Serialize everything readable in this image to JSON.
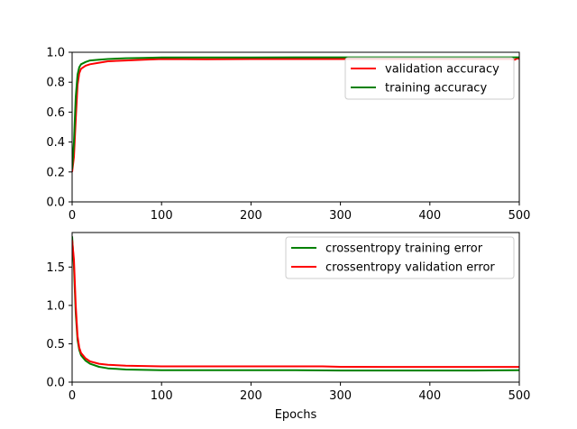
{
  "chart_data": [
    {
      "type": "line",
      "title": "",
      "xlabel": "",
      "ylabel": "",
      "xlim": [
        0,
        500
      ],
      "ylim": [
        0,
        1.0
      ],
      "x_ticks": [
        0,
        100,
        200,
        300,
        400,
        500
      ],
      "y_ticks": [
        0.0,
        0.2,
        0.4,
        0.6,
        0.8,
        1.0
      ],
      "x_tick_labels": [
        "0",
        "100",
        "200",
        "300",
        "400",
        "500"
      ],
      "y_tick_labels": [
        "0.0",
        "0.2",
        "0.4",
        "0.6",
        "0.8",
        "1.0"
      ],
      "grid": false,
      "legend_position": "top-right",
      "series": [
        {
          "name": "validation accuracy",
          "color": "#ff0000",
          "points": [
            [
              0,
              0.2
            ],
            [
              2,
              0.3
            ],
            [
              4,
              0.55
            ],
            [
              6,
              0.78
            ],
            [
              8,
              0.86
            ],
            [
              10,
              0.89
            ],
            [
              15,
              0.91
            ],
            [
              20,
              0.92
            ],
            [
              30,
              0.93
            ],
            [
              40,
              0.94
            ],
            [
              60,
              0.945
            ],
            [
              80,
              0.95
            ],
            [
              100,
              0.955
            ],
            [
              150,
              0.953
            ],
            [
              200,
              0.955
            ],
            [
              250,
              0.955
            ],
            [
              300,
              0.955
            ],
            [
              350,
              0.955
            ],
            [
              400,
              0.955
            ],
            [
              450,
              0.955
            ],
            [
              490,
              0.955
            ],
            [
              495,
              0.95
            ],
            [
              498,
              0.96
            ],
            [
              500,
              0.955
            ]
          ]
        },
        {
          "name": "training accuracy",
          "color": "#008000",
          "points": [
            [
              0,
              0.22
            ],
            [
              2,
              0.4
            ],
            [
              4,
              0.7
            ],
            [
              6,
              0.85
            ],
            [
              8,
              0.9
            ],
            [
              10,
              0.92
            ],
            [
              15,
              0.935
            ],
            [
              20,
              0.945
            ],
            [
              30,
              0.95
            ],
            [
              40,
              0.955
            ],
            [
              60,
              0.96
            ],
            [
              80,
              0.962
            ],
            [
              100,
              0.965
            ],
            [
              150,
              0.965
            ],
            [
              200,
              0.965
            ],
            [
              250,
              0.966
            ],
            [
              300,
              0.966
            ],
            [
              350,
              0.966
            ],
            [
              400,
              0.966
            ],
            [
              450,
              0.966
            ],
            [
              500,
              0.966
            ]
          ]
        }
      ]
    },
    {
      "type": "line",
      "title": "",
      "xlabel": "Epochs",
      "ylabel": "",
      "xlim": [
        0,
        500
      ],
      "ylim": [
        0,
        1.95
      ],
      "x_ticks": [
        0,
        100,
        200,
        300,
        400,
        500
      ],
      "y_ticks": [
        0.0,
        0.5,
        1.0,
        1.5
      ],
      "x_tick_labels": [
        "0",
        "100",
        "200",
        "300",
        "400",
        "500"
      ],
      "y_tick_labels": [
        "0.0",
        "0.5",
        "1.0",
        "1.5"
      ],
      "grid": false,
      "legend_position": "top-right",
      "series": [
        {
          "name": "crossentropy training error",
          "color": "#008000",
          "points": [
            [
              0,
              1.9
            ],
            [
              2,
              1.5
            ],
            [
              4,
              0.9
            ],
            [
              6,
              0.55
            ],
            [
              8,
              0.42
            ],
            [
              10,
              0.35
            ],
            [
              15,
              0.28
            ],
            [
              20,
              0.24
            ],
            [
              30,
              0.2
            ],
            [
              40,
              0.18
            ],
            [
              60,
              0.165
            ],
            [
              80,
              0.16
            ],
            [
              100,
              0.155
            ],
            [
              150,
              0.155
            ],
            [
              200,
              0.155
            ],
            [
              250,
              0.155
            ],
            [
              300,
              0.152
            ],
            [
              350,
              0.152
            ],
            [
              400,
              0.152
            ],
            [
              450,
              0.152
            ],
            [
              500,
              0.155
            ]
          ]
        },
        {
          "name": "crossentropy validation error",
          "color": "#ff0000",
          "points": [
            [
              0,
              1.85
            ],
            [
              2,
              1.6
            ],
            [
              4,
              1.0
            ],
            [
              6,
              0.6
            ],
            [
              8,
              0.45
            ],
            [
              10,
              0.38
            ],
            [
              15,
              0.31
            ],
            [
              20,
              0.27
            ],
            [
              30,
              0.24
            ],
            [
              40,
              0.225
            ],
            [
              60,
              0.215
            ],
            [
              80,
              0.21
            ],
            [
              100,
              0.205
            ],
            [
              150,
              0.205
            ],
            [
              200,
              0.205
            ],
            [
              250,
              0.205
            ],
            [
              280,
              0.205
            ],
            [
              300,
              0.2
            ],
            [
              350,
              0.198
            ],
            [
              400,
              0.198
            ],
            [
              450,
              0.198
            ],
            [
              500,
              0.198
            ]
          ]
        }
      ]
    }
  ]
}
